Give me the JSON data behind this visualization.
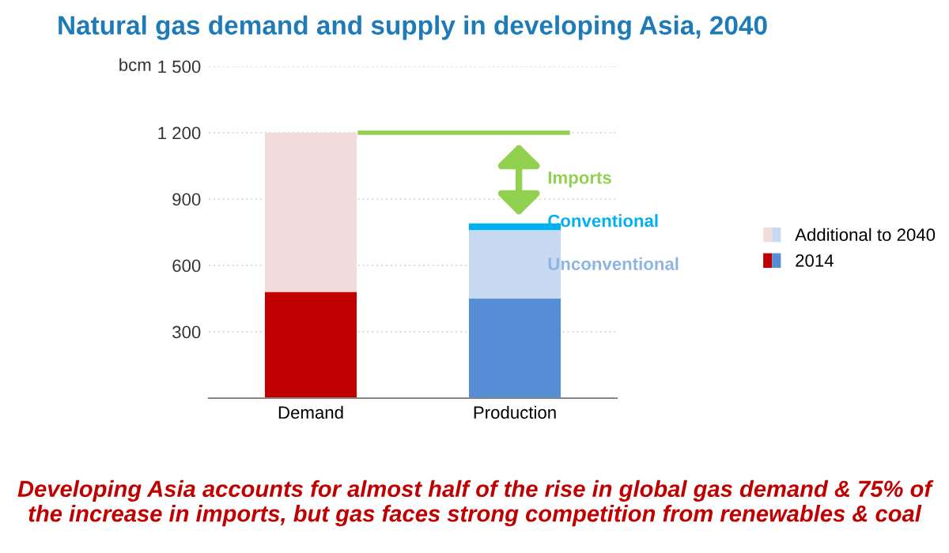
{
  "chart_data": {
    "type": "bar",
    "title": "Natural gas demand and supply in developing Asia, 2040",
    "ylabel": "bcm",
    "categories": [
      "Demand",
      "Production"
    ],
    "stacked": true,
    "series": [
      {
        "name": "2014",
        "colors": [
          "#c00000",
          "#558ed5"
        ],
        "values": [
          480,
          450
        ]
      },
      {
        "name": "Additional to 2040",
        "colors": [
          "#f2dcdb",
          "#c6d9f1"
        ],
        "values": [
          720,
          310
        ]
      },
      {
        "colors": [
          null,
          "#00b0f0"
        ],
        "values": [
          null,
          30
        ]
      }
    ],
    "ylim": [
      0,
      1500
    ],
    "yticks": [
      {
        "value": 300,
        "label": "300"
      },
      {
        "value": 600,
        "label": "600"
      },
      {
        "value": 900,
        "label": "900"
      },
      {
        "value": 1200,
        "label": "1 200"
      },
      {
        "value": 1500,
        "label": "1 500"
      }
    ],
    "grid": "y",
    "legend": "right",
    "ref_lines": [
      {
        "axis": "y",
        "value": 1200,
        "color": "#92d050"
      }
    ],
    "annotations": [
      "Imports",
      "Conventional",
      "Unconventional",
      "Developing Asia accounts for almost half of the rise in global gas demand & 75% of the increase in imports, but gas faces strong competition from renewables & coal"
    ]
  }
}
